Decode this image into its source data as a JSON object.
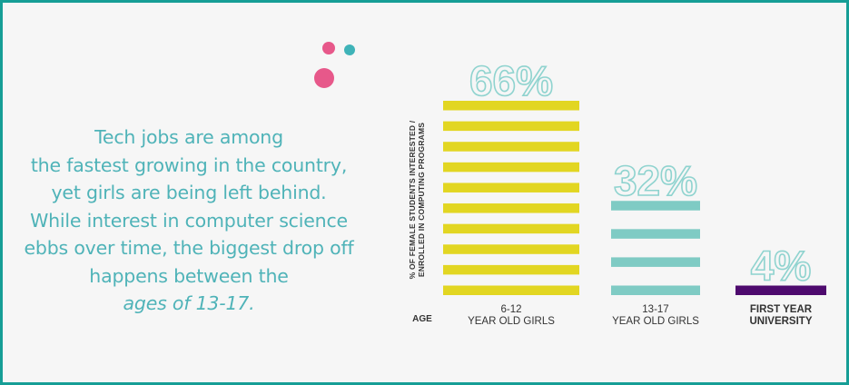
{
  "intro": {
    "lines": [
      "Tech jobs are among",
      "the fastest growing in the country,",
      "yet girls are being left behind.",
      "While interest in computer science",
      "ebbs over time, the biggest drop off",
      "happens between the"
    ],
    "emphasis": "ages of 13-17."
  },
  "chart_data": {
    "type": "bar",
    "ylabel_lines": [
      "% OF FEMALE STUDENTS INTERESTED /",
      "ENROLLED IN COMPUTING PROGRAMS"
    ],
    "xlabel": "AGE",
    "ylim": [
      0,
      66
    ],
    "categories": [
      {
        "lines": [
          "6-12",
          "YEAR OLD GIRLS"
        ],
        "bold": false
      },
      {
        "lines": [
          "13-17",
          "YEAR OLD GIRLS"
        ],
        "bold": false
      },
      {
        "lines": [
          "FIRST YEAR",
          "UNIVERSITY"
        ],
        "bold": true
      }
    ],
    "values": [
      66,
      32,
      4
    ],
    "value_labels": [
      "66%",
      "32%",
      "4%"
    ],
    "colors": [
      "#e2d622",
      "#7fcbc4",
      "#4e0a6e"
    ],
    "stripes": [
      10,
      4,
      1
    ]
  },
  "decor": {
    "dot_colors": [
      "#e7588a",
      "#3fb3b8",
      "#e7588a"
    ]
  }
}
